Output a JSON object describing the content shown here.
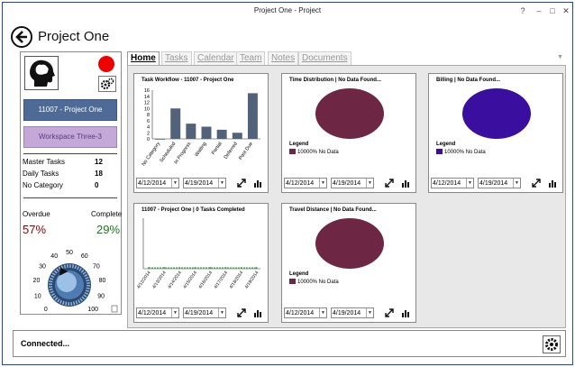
{
  "window": {
    "title": "Project One - Project",
    "controls": {
      "help": "?",
      "minimize": "–",
      "maximize": "□",
      "close": "✕"
    }
  },
  "header": {
    "title": "Project One",
    "back_icon": "back-arrow-icon"
  },
  "left_panel": {
    "avatar_icon": "head-profile-icon",
    "status_color": "#ee0000",
    "settings_icon": "gears-icon",
    "project_button": "11007 - Project One",
    "workspace_button": "Workspace Three-3",
    "stats": [
      {
        "label": "Master Tasks",
        "value": "12"
      },
      {
        "label": "Daily Tasks",
        "value": "18"
      },
      {
        "label": "No Category",
        "value": "0"
      }
    ],
    "overdue_label": "Overdue",
    "complete_label": "Complete",
    "overdue_value": "57%",
    "complete_value": "29%",
    "dial": {
      "ticks": [
        "0",
        "10",
        "20",
        "30",
        "40",
        "50",
        "60",
        "70",
        "80",
        "90",
        "100"
      ],
      "value": 40
    }
  },
  "tabs": [
    {
      "label": "Home",
      "active": true
    },
    {
      "label": "Tasks",
      "active": false
    },
    {
      "label": "Calendar",
      "active": false
    },
    {
      "label": "Team",
      "active": false
    },
    {
      "label": "Notes",
      "active": false
    },
    {
      "label": "Documents",
      "active": false
    }
  ],
  "cards": [
    {
      "title": "Task Workflow - 11007 - Project One",
      "date_from": "4/12/2014",
      "date_to": "4/19/2014",
      "chart_data": {
        "type": "bar",
        "categories": [
          "No Category",
          "Scheduled",
          "In Progress",
          "Waiting",
          "Partial",
          "Deferred",
          "Past Due"
        ],
        "values": [
          0,
          10,
          5,
          4,
          3,
          2,
          15
        ],
        "ylim": [
          0,
          16
        ],
        "yticks": [
          "0",
          "2",
          "4",
          "6",
          "8",
          "10",
          "12",
          "14",
          "16"
        ],
        "title": "Task Workflow - 11007 - Project One",
        "bar_color": "#52627a"
      }
    },
    {
      "title": "Time Distribution | No Data Found...",
      "date_from": "4/12/2014",
      "date_to": "4/19/2014",
      "legend_title": "Legend",
      "chart_data": {
        "type": "pie",
        "slices": [
          {
            "label": "10000% No Data",
            "value": 100,
            "color": "#6e2645"
          }
        ],
        "title": "Time Distribution | No Data Found..."
      }
    },
    {
      "title": "Billing | No Data Found...",
      "date_from": "4/12/2014",
      "date_to": "4/19/2014",
      "legend_title": "Legend",
      "chart_data": {
        "type": "pie",
        "slices": [
          {
            "label": "10000% No Data",
            "value": 100,
            "color": "#3a0fa0"
          }
        ],
        "title": "Billing | No Data Found..."
      }
    },
    {
      "title": "11007 - Project One | 0 Tasks Completed",
      "date_from": "4/12/2014",
      "date_to": "4/19/2014",
      "chart_data": {
        "type": "line",
        "x": [
          "4/12/2014",
          "4/13/2014",
          "4/14/2014",
          "4/15/2014",
          "4/16/2014",
          "4/17/2014",
          "4/18/2014",
          "4/19/2014"
        ],
        "values": [
          0,
          0,
          0,
          0,
          0,
          0,
          0,
          0
        ],
        "title": "11007 - Project One | 0 Tasks Completed",
        "line_color": "#2a9a3a"
      }
    },
    {
      "title": "Travel Distance | No Data Found...",
      "date_from": "4/12/2014",
      "date_to": "4/19/2014",
      "legend_title": "Legend",
      "chart_data": {
        "type": "pie",
        "slices": [
          {
            "label": "10000% No Data",
            "value": 100,
            "color": "#6e2645"
          }
        ],
        "title": "Travel Distance | No Data Found..."
      }
    }
  ],
  "status": {
    "text": "Connected...",
    "settings_icon": "gear-icon"
  }
}
